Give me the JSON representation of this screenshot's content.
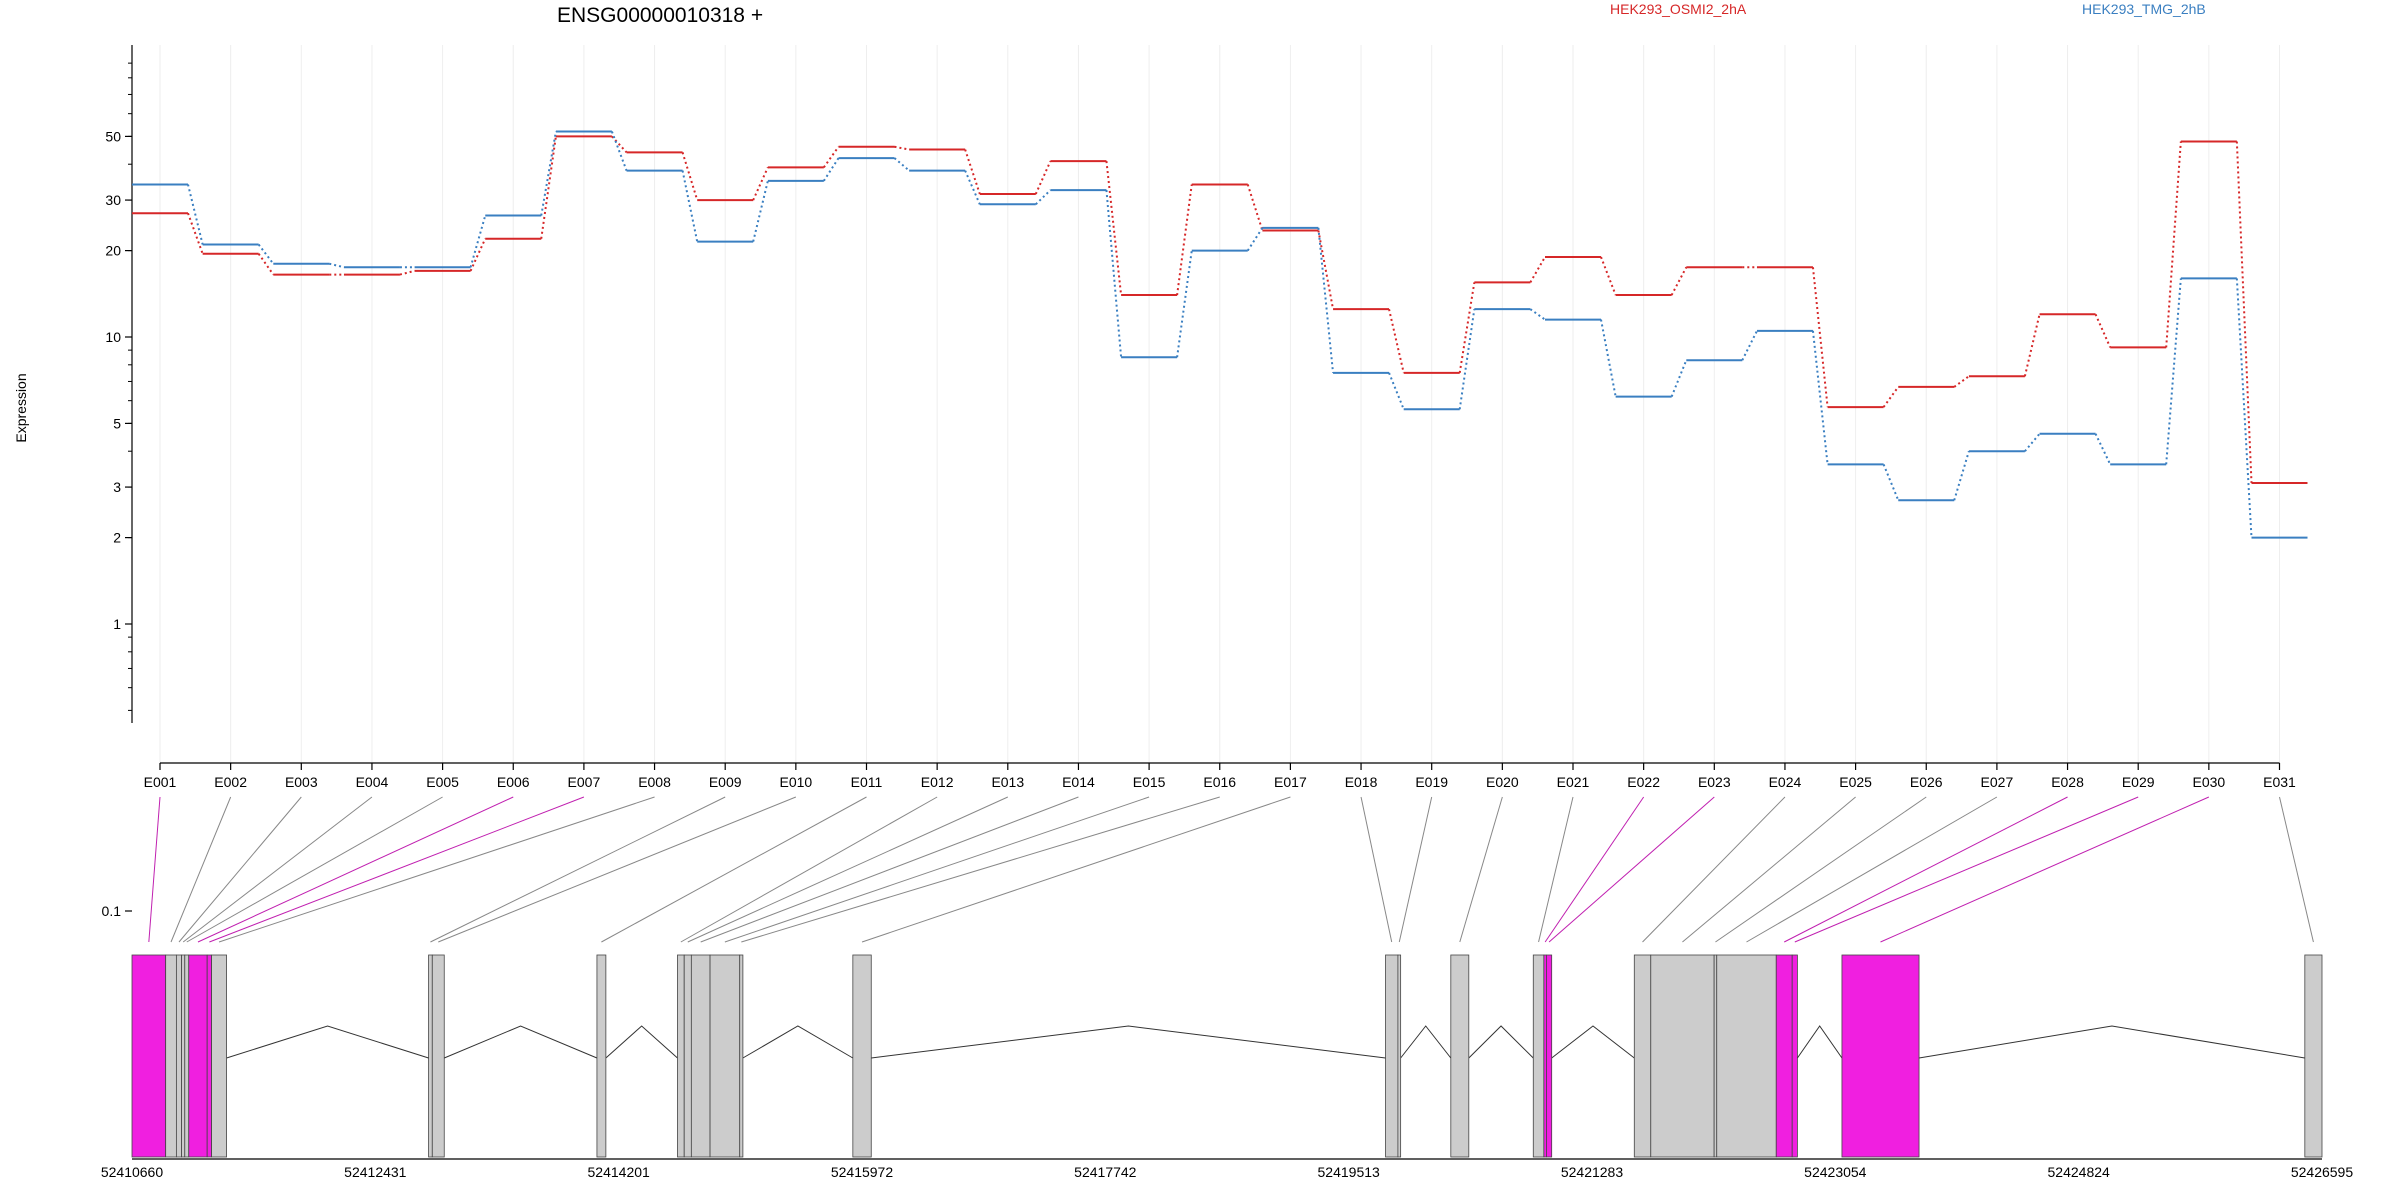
{
  "chart_data": {
    "type": "line",
    "title": "ENSG00000010318 +",
    "ylabel": "Expression",
    "yscale": "log",
    "ylim": [
      0.06,
      60
    ],
    "y_ticks": [
      0.1,
      1,
      2,
      3,
      5,
      10,
      20,
      30,
      50
    ],
    "y_tick_labels": [
      "0.1",
      "1",
      "2",
      "3",
      "5",
      "10",
      "20",
      "30",
      "50"
    ],
    "categories": [
      "E001",
      "E002",
      "E003",
      "E004",
      "E005",
      "E006",
      "E007",
      "E008",
      "E009",
      "E010",
      "E011",
      "E012",
      "E013",
      "E014",
      "E015",
      "E016",
      "E017",
      "E018",
      "E019",
      "E020",
      "E021",
      "E022",
      "E023",
      "E024",
      "E025",
      "E026",
      "E027",
      "E028",
      "E029",
      "E030",
      "E031"
    ],
    "series": [
      {
        "name": "HEK293_OSMI2_2hA",
        "color": "#d62728",
        "values": [
          27,
          19.5,
          16.5,
          16.5,
          17,
          22,
          50,
          44,
          30,
          39,
          46,
          45,
          31.5,
          41,
          14,
          34,
          23.5,
          12.5,
          7.5,
          15.5,
          19,
          14,
          17.5,
          17.5,
          5.7,
          6.7,
          7.3,
          12,
          9.2,
          48,
          3.1
        ]
      },
      {
        "name": "HEK293_TMG_2hB",
        "color": "#3a7fc1",
        "values": [
          34,
          21,
          18,
          17.5,
          17.5,
          26.5,
          52,
          38,
          21.5,
          35,
          42,
          38,
          29,
          32.5,
          8.5,
          20,
          24,
          7.5,
          5.6,
          12.5,
          11.5,
          6.2,
          8.3,
          10.5,
          3.6,
          2.7,
          4,
          4.6,
          3.6,
          16,
          2
        ]
      }
    ],
    "gene_model": {
      "coordinate_labels": [
        "52410660",
        "52412431",
        "52414201",
        "52415972",
        "52417742",
        "52419513",
        "52421283",
        "52423054",
        "52424824",
        "52426595"
      ],
      "coord_start": 52410660,
      "coord_end": 52426595,
      "highlight_color": "#f01fe0",
      "exon_color": "#cccccc",
      "exons": [
        {
          "id": "E001",
          "start": 52410660,
          "end": 52410905,
          "highlight": true
        },
        {
          "id": "E002",
          "start": 52410905,
          "end": 52410983,
          "highlight": false
        },
        {
          "id": "E003",
          "start": 52410983,
          "end": 52411021,
          "highlight": false
        },
        {
          "id": "E004",
          "start": 52411021,
          "end": 52411044,
          "highlight": false
        },
        {
          "id": "E005",
          "start": 52411044,
          "end": 52411073,
          "highlight": false
        },
        {
          "id": "E006",
          "start": 52411073,
          "end": 52411207,
          "highlight": true
        },
        {
          "id": "E007",
          "start": 52411207,
          "end": 52411239,
          "highlight": true
        },
        {
          "id": "E008",
          "start": 52411239,
          "end": 52411348,
          "highlight": false
        },
        {
          "id": "E009",
          "start": 52412818,
          "end": 52412845,
          "highlight": false
        },
        {
          "id": "E010",
          "start": 52412845,
          "end": 52412932,
          "highlight": false
        },
        {
          "id": "E011",
          "start": 52414043,
          "end": 52414108,
          "highlight": false
        },
        {
          "id": "E012",
          "start": 52414629,
          "end": 52414678,
          "highlight": false
        },
        {
          "id": "E013",
          "start": 52414678,
          "end": 52414730,
          "highlight": false
        },
        {
          "id": "E014",
          "start": 52414730,
          "end": 52414866,
          "highlight": false
        },
        {
          "id": "E015",
          "start": 52414866,
          "end": 52415082,
          "highlight": false
        },
        {
          "id": "E016",
          "start": 52415082,
          "end": 52415105,
          "highlight": false
        },
        {
          "id": "E017",
          "start": 52415905,
          "end": 52416039,
          "highlight": false
        },
        {
          "id": "E018",
          "start": 52419781,
          "end": 52419871,
          "highlight": false
        },
        {
          "id": "E019",
          "start": 52419871,
          "end": 52419891,
          "highlight": false
        },
        {
          "id": "E020",
          "start": 52420256,
          "end": 52420387,
          "highlight": false
        },
        {
          "id": "E021",
          "start": 52420856,
          "end": 52420933,
          "highlight": false
        },
        {
          "id": "E022",
          "start": 52420933,
          "end": 52420952,
          "highlight": true
        },
        {
          "id": "E023",
          "start": 52420952,
          "end": 52420990,
          "highlight": true
        },
        {
          "id": "E024",
          "start": 52421591,
          "end": 52421711,
          "highlight": false
        },
        {
          "id": "E025",
          "start": 52421711,
          "end": 52422172,
          "highlight": false
        },
        {
          "id": "E026",
          "start": 52422172,
          "end": 52422191,
          "highlight": false
        },
        {
          "id": "E027",
          "start": 52422191,
          "end": 52422624,
          "highlight": false
        },
        {
          "id": "E028",
          "start": 52422624,
          "end": 52422740,
          "highlight": true
        },
        {
          "id": "E029",
          "start": 52422740,
          "end": 52422778,
          "highlight": true
        },
        {
          "id": "E030",
          "start": 52423102,
          "end": 52423663,
          "highlight": true
        },
        {
          "id": "E031",
          "start": 52426470,
          "end": 52426595,
          "highlight": false
        }
      ]
    }
  }
}
